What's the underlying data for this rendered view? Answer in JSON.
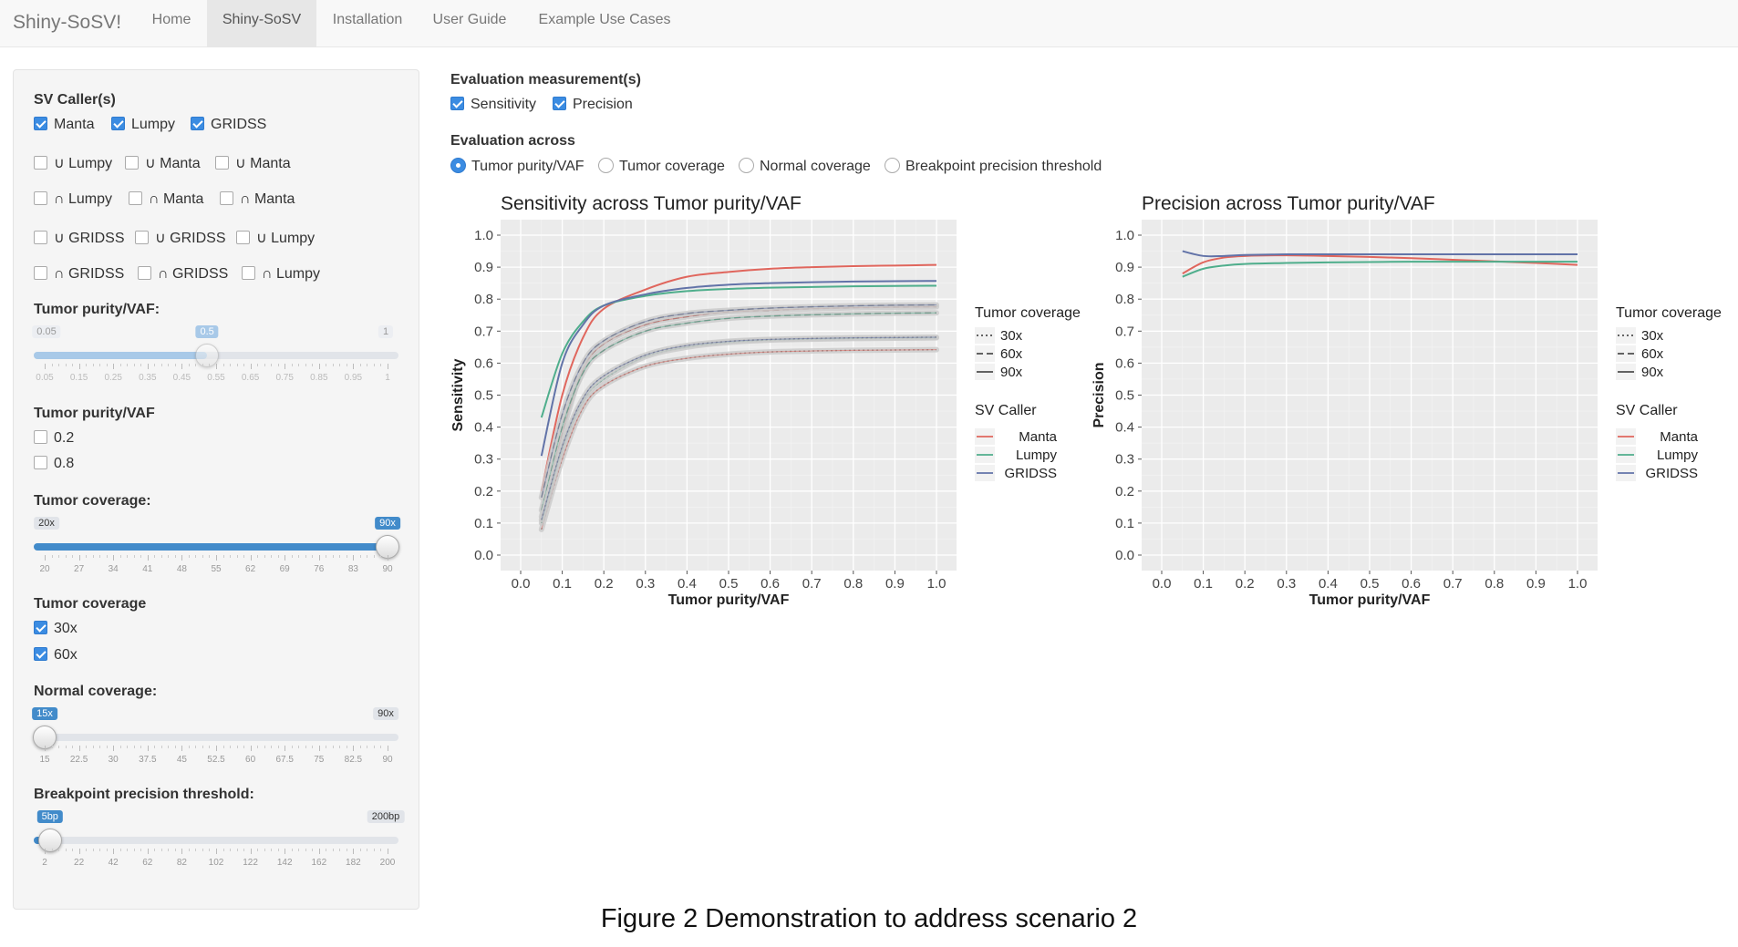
{
  "navbar": {
    "brand": "Shiny-SoSV!",
    "tabs": [
      "Home",
      "Shiny-SoSV",
      "Installation",
      "User Guide",
      "Example Use Cases"
    ],
    "active_tab": "Shiny-SoSV"
  },
  "sidebar": {
    "sv_callers": {
      "label": "SV Caller(s)",
      "rows": [
        [
          {
            "label": "Manta",
            "checked": true
          },
          {
            "label": "Lumpy",
            "checked": true
          },
          {
            "label": "GRIDSS",
            "checked": true
          }
        ],
        [
          {
            "label": "∪ Lumpy",
            "checked": false
          },
          {
            "label": "∪ Manta",
            "checked": false
          },
          {
            "label": "∪ Manta",
            "checked": false
          }
        ],
        [
          {
            "label": "∩ Lumpy",
            "checked": false
          },
          {
            "label": "∩ Manta",
            "checked": false
          },
          {
            "label": "∩ Manta",
            "checked": false
          }
        ],
        [
          {
            "label": "∪ GRIDSS",
            "checked": false
          },
          {
            "label": "∪ GRIDSS",
            "checked": false
          },
          {
            "label": "∪ Lumpy",
            "checked": false
          }
        ],
        [
          {
            "label": "∩ GRIDSS",
            "checked": false
          },
          {
            "label": "∩ GRIDSS",
            "checked": false
          },
          {
            "label": "∩ Lumpy",
            "checked": false
          }
        ]
      ]
    },
    "purity_slider": {
      "label": "Tumor purity/VAF:",
      "min_label": "0.05",
      "max_label": "1",
      "value_label": "0.5",
      "value_fraction": 0.4737,
      "ticks": [
        "0.05",
        "0.15",
        "0.25",
        "0.35",
        "0.45",
        "0.55",
        "0.65",
        "0.75",
        "0.85",
        "0.95",
        "1"
      ]
    },
    "purity_checks": {
      "label": "Tumor purity/VAF",
      "items": [
        {
          "label": "0.2",
          "checked": false
        },
        {
          "label": "0.8",
          "checked": false
        }
      ]
    },
    "tumor_cov_slider": {
      "label": "Tumor coverage:",
      "min_label": "20x",
      "max_label": "90x",
      "value_label": "90x",
      "value_fraction": 1.0,
      "ticks": [
        "20",
        "27",
        "34",
        "41",
        "48",
        "55",
        "62",
        "69",
        "76",
        "83",
        "90"
      ]
    },
    "tumor_cov_checks": {
      "label": "Tumor coverage",
      "items": [
        {
          "label": "30x",
          "checked": true
        },
        {
          "label": "60x",
          "checked": true
        }
      ]
    },
    "normal_cov_slider": {
      "label": "Normal coverage:",
      "min_label": "15x",
      "max_label": "90x",
      "value_label": "15x",
      "value_fraction": 0.0,
      "ticks": [
        "15",
        "22.5",
        "30",
        "37.5",
        "45",
        "52.5",
        "60",
        "67.5",
        "75",
        "82.5",
        "90"
      ]
    },
    "bp_slider": {
      "label": "Breakpoint precision threshold:",
      "min_label": "5bp",
      "max_label": "200bp",
      "value_label": "5bp",
      "value_fraction": 0.0153,
      "ticks": [
        "2",
        "22",
        "42",
        "62",
        "82",
        "102",
        "122",
        "142",
        "162",
        "182",
        "200"
      ]
    }
  },
  "main": {
    "eval_measure": {
      "label": "Evaluation measurement(s)",
      "items": [
        {
          "label": "Sensitivity",
          "checked": true
        },
        {
          "label": "Precision",
          "checked": true
        }
      ]
    },
    "eval_across": {
      "label": "Evaluation across",
      "options": [
        {
          "label": "Tumor purity/VAF",
          "selected": true
        },
        {
          "label": "Tumor coverage",
          "selected": false
        },
        {
          "label": "Normal coverage",
          "selected": false
        },
        {
          "label": "Breakpoint precision threshold",
          "selected": false
        }
      ]
    }
  },
  "legend": {
    "coverage_title": "Tumor coverage",
    "coverage_items": [
      "30x",
      "60x",
      "90x"
    ],
    "caller_title": "SV Caller",
    "caller_items": [
      "Manta",
      "Lumpy",
      "GRIDSS"
    ]
  },
  "colors": {
    "Manta": "#e0665d",
    "Lumpy": "#4fae8c",
    "GRIDSS": "#6273a8",
    "accent": "#428bca",
    "panel_bg": "#ebebeb"
  },
  "chart_data": [
    {
      "type": "line",
      "title": "Sensitivity across Tumor purity/VAF",
      "xlabel": "Tumor purity/VAF",
      "ylabel": "Sensitivity",
      "xlim": [
        0,
        1
      ],
      "ylim": [
        0,
        1
      ],
      "xticks": [
        "0.0",
        "0.1",
        "0.2",
        "0.3",
        "0.4",
        "0.5",
        "0.6",
        "0.7",
        "0.8",
        "0.9",
        "1.0"
      ],
      "yticks": [
        "0.0",
        "0.1",
        "0.2",
        "0.3",
        "0.4",
        "0.5",
        "0.6",
        "0.7",
        "0.8",
        "0.9",
        "1.0"
      ],
      "x": [
        0.05,
        0.1,
        0.15,
        0.2,
        0.3,
        0.4,
        0.5,
        0.6,
        0.7,
        0.8,
        0.9,
        1.0
      ],
      "series": [
        {
          "caller": "Manta",
          "coverage": "90x",
          "values": [
            0.2,
            0.5,
            0.68,
            0.77,
            0.83,
            0.87,
            0.885,
            0.895,
            0.9,
            0.903,
            0.905,
            0.907
          ]
        },
        {
          "caller": "Lumpy",
          "coverage": "90x",
          "values": [
            0.43,
            0.63,
            0.73,
            0.78,
            0.81,
            0.825,
            0.832,
            0.836,
            0.838,
            0.84,
            0.841,
            0.842
          ]
        },
        {
          "caller": "GRIDSS",
          "coverage": "90x",
          "values": [
            0.31,
            0.6,
            0.72,
            0.78,
            0.815,
            0.835,
            0.845,
            0.85,
            0.853,
            0.855,
            0.856,
            0.857
          ]
        },
        {
          "caller": "Manta",
          "coverage": "60x",
          "values": [
            0.12,
            0.38,
            0.58,
            0.66,
            0.72,
            0.745,
            0.76,
            0.765,
            0.77,
            0.773,
            0.775,
            0.776
          ]
        },
        {
          "caller": "Lumpy",
          "coverage": "60x",
          "values": [
            0.14,
            0.4,
            0.57,
            0.64,
            0.7,
            0.725,
            0.74,
            0.747,
            0.751,
            0.754,
            0.756,
            0.757
          ]
        },
        {
          "caller": "GRIDSS",
          "coverage": "60x",
          "values": [
            0.18,
            0.44,
            0.6,
            0.67,
            0.73,
            0.755,
            0.765,
            0.772,
            0.776,
            0.779,
            0.781,
            0.782
          ]
        },
        {
          "caller": "Manta",
          "coverage": "30x",
          "values": [
            0.08,
            0.3,
            0.46,
            0.53,
            0.59,
            0.615,
            0.628,
            0.635,
            0.638,
            0.64,
            0.641,
            0.642
          ]
        },
        {
          "caller": "Lumpy",
          "coverage": "30x",
          "values": [
            0.1,
            0.33,
            0.48,
            0.55,
            0.62,
            0.65,
            0.665,
            0.672,
            0.675,
            0.677,
            0.678,
            0.679
          ]
        },
        {
          "caller": "GRIDSS",
          "coverage": "30x",
          "values": [
            0.11,
            0.34,
            0.49,
            0.56,
            0.625,
            0.655,
            0.668,
            0.674,
            0.677,
            0.679,
            0.68,
            0.681
          ]
        }
      ]
    },
    {
      "type": "line",
      "title": "Precision across Tumor purity/VAF",
      "xlabel": "Tumor purity/VAF",
      "ylabel": "Precision",
      "xlim": [
        0,
        1
      ],
      "ylim": [
        0,
        1
      ],
      "xticks": [
        "0.0",
        "0.1",
        "0.2",
        "0.3",
        "0.4",
        "0.5",
        "0.6",
        "0.7",
        "0.8",
        "0.9",
        "1.0"
      ],
      "yticks": [
        "0.0",
        "0.1",
        "0.2",
        "0.3",
        "0.4",
        "0.5",
        "0.6",
        "0.7",
        "0.8",
        "0.9",
        "1.0"
      ],
      "x": [
        0.05,
        0.1,
        0.15,
        0.2,
        0.3,
        0.4,
        0.5,
        0.6,
        0.7,
        0.8,
        0.9,
        1.0
      ],
      "series": [
        {
          "caller": "Manta",
          "coverage": "90x",
          "values": [
            0.88,
            0.915,
            0.93,
            0.935,
            0.937,
            0.935,
            0.932,
            0.928,
            0.923,
            0.918,
            0.913,
            0.907
          ]
        },
        {
          "caller": "Lumpy",
          "coverage": "90x",
          "values": [
            0.87,
            0.895,
            0.905,
            0.91,
            0.913,
            0.915,
            0.916,
            0.917,
            0.917,
            0.917,
            0.917,
            0.917
          ]
        },
        {
          "caller": "GRIDSS",
          "coverage": "90x",
          "values": [
            0.95,
            0.935,
            0.935,
            0.938,
            0.94,
            0.94,
            0.94,
            0.94,
            0.94,
            0.94,
            0.94,
            0.94
          ]
        }
      ]
    }
  ],
  "caption": "Figure 2 Demonstration to address scenario 2"
}
